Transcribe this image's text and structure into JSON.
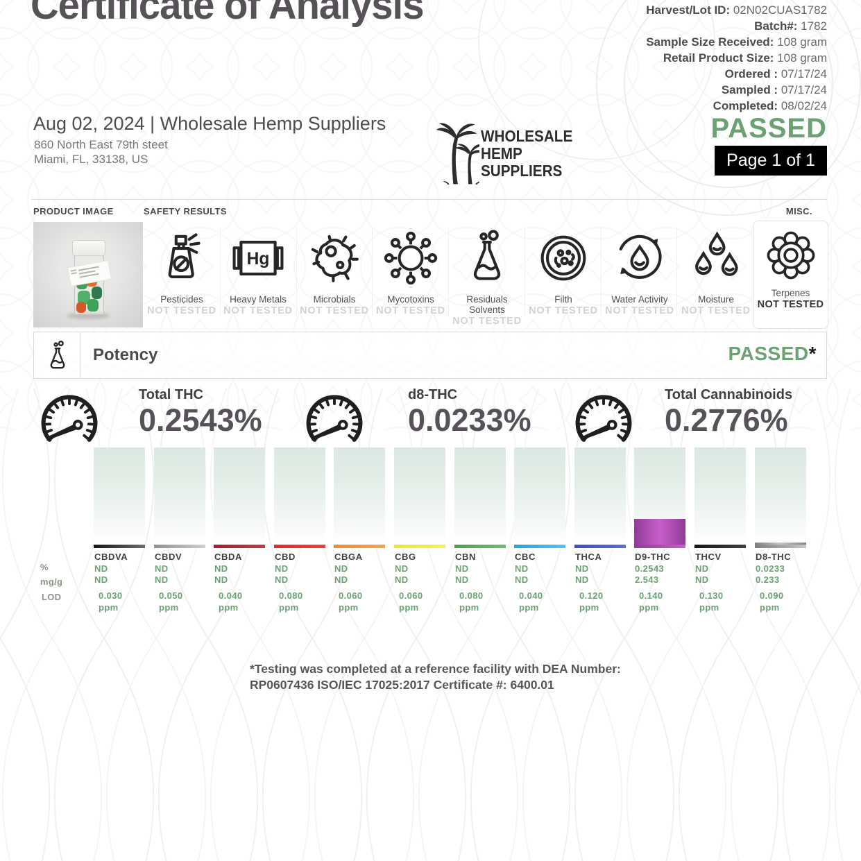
{
  "title": "Certificate of Analysis",
  "meta_rows": [
    {
      "label": "Harvest/Lot ID:",
      "value": "02N02CUAS1782"
    },
    {
      "label": "Batch#:",
      "value": "1782"
    },
    {
      "label": "Sample Size Received:",
      "value": "108 gram"
    },
    {
      "label": "Retail Product Size:",
      "value": "108 gram"
    },
    {
      "label": "Ordered :",
      "value": "07/17/24"
    },
    {
      "label": "Sampled :",
      "value": "07/17/24"
    },
    {
      "label": "Completed:",
      "value": "08/02/24"
    }
  ],
  "header": {
    "date_company": "Aug 02, 2024 | Wholesale Hemp Suppliers",
    "address_line1": "860 North East 79th steet",
    "address_line2": "Miami, FL, 33138, US",
    "logo_line1": "WHOLESALE",
    "logo_line2": "HEMP",
    "logo_line3": "SUPPLIERS",
    "passed": "PASSED",
    "page": "Page 1 of 1"
  },
  "sections": {
    "product_image": "PRODUCT IMAGE",
    "safety": "SAFETY RESULTS",
    "misc": "MISC."
  },
  "safety_tests": [
    {
      "name": "Pesticides",
      "status": "NOT TESTED",
      "icon": "pesticides-spray-icon"
    },
    {
      "name": "Heavy Metals",
      "status": "NOT TESTED",
      "icon": "mercury-element-icon",
      "icon_text": "Hg"
    },
    {
      "name": "Microbials",
      "status": "NOT TESTED",
      "icon": "bacteria-icon"
    },
    {
      "name": "Mycotoxins",
      "status": "NOT TESTED",
      "icon": "mold-spore-icon"
    },
    {
      "name": "Residuals Solvents",
      "status": "NOT TESTED",
      "icon": "flask-icon"
    },
    {
      "name": "Filth",
      "status": "NOT TESTED",
      "icon": "petri-dish-icon"
    },
    {
      "name": "Water Activity",
      "status": "NOT TESTED",
      "icon": "water-cycle-icon"
    },
    {
      "name": "Moisture",
      "status": "NOT TESTED",
      "icon": "droplets-icon"
    }
  ],
  "misc_test": {
    "name": "Terpenes",
    "status": "NOT TESTED",
    "icon": "terpene-flower-icon"
  },
  "potency": {
    "title": "Potency",
    "status": "PASSED",
    "asterisk": "*"
  },
  "gauges": [
    {
      "label": "Total THC",
      "value": "0.2543%"
    },
    {
      "label": "d8-THC",
      "value": "0.0233%"
    },
    {
      "label": "Total Cannabinoids",
      "value": "0.2776%"
    }
  ],
  "axis_rows": [
    "%",
    "mg/g",
    "LOD"
  ],
  "chart_data": {
    "type": "bar",
    "categories": [
      "CBDVA",
      "CBDV",
      "CBDA",
      "CBD",
      "CBGA",
      "CBG",
      "CBN",
      "CBC",
      "THCA",
      "D9-THC",
      "THCV",
      "D8-THC"
    ],
    "series": [
      {
        "name": "%",
        "values": [
          "ND",
          "ND",
          "ND",
          "ND",
          "ND",
          "ND",
          "ND",
          "ND",
          "ND",
          "0.2543",
          "ND",
          "0.0233"
        ]
      },
      {
        "name": "mg/g",
        "values": [
          "ND",
          "ND",
          "ND",
          "ND",
          "ND",
          "ND",
          "ND",
          "ND",
          "ND",
          "2.543",
          "ND",
          "0.233"
        ]
      },
      {
        "name": "LOD (ppm)",
        "values": [
          "0.030",
          "0.050",
          "0.040",
          "0.080",
          "0.060",
          "0.060",
          "0.080",
          "0.040",
          "0.120",
          "0.140",
          "0.130",
          "0.090"
        ]
      }
    ],
    "unit_label": "ppm",
    "nd_label": "ND",
    "ylim": [
      0,
      1
    ],
    "bar_colors": [
      [
        "#141414",
        "#6e6e6e"
      ],
      [
        "#8f8f8f",
        "#d0d0d0"
      ],
      [
        "#a02030",
        "#c93a42"
      ],
      [
        "#e42a2c",
        "#f04238"
      ],
      [
        "#ef8b31",
        "#f6a44f"
      ],
      [
        "#efe52e",
        "#f7ef58"
      ],
      [
        "#47a04f",
        "#69bf70"
      ],
      [
        "#23a3dd",
        "#4fc4f0"
      ],
      [
        "#3f4ec4",
        "#5c6cda"
      ],
      [
        "#8e3b96",
        "#c85fca"
      ],
      [
        "#161616",
        "#3e3e3e"
      ],
      [
        "#808080",
        "#c6c6c6"
      ]
    ]
  },
  "footnote": {
    "line1": "*Testing was completed at a reference facility with DEA Number:",
    "line2": "RP0607436 ISO/IEC 17025:2017 Certificate #: 6400.01"
  },
  "colors": {
    "passed_green": "#6ca173",
    "title_gray": "#575257",
    "value_green": "#68a371",
    "page_box_bg": "#000000"
  }
}
